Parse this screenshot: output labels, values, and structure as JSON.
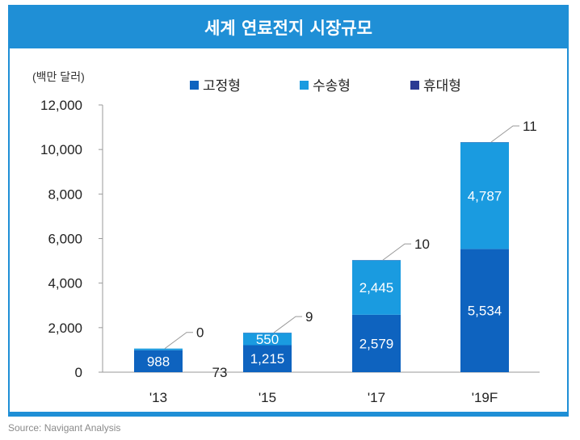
{
  "title": "세계 연료전지 시장규모",
  "source": "Source: Navigant Analysis",
  "chart_data": {
    "type": "bar",
    "stacked": true,
    "unit_label": "(백만 달러)",
    "categories": [
      "'13",
      "'15",
      "'17",
      "'19F"
    ],
    "series": [
      {
        "name": "고정형",
        "color": "#0e63bf",
        "values": [
          988,
          1215,
          2579,
          5534
        ]
      },
      {
        "name": "수송형",
        "color": "#1a9be0",
        "values": [
          73,
          550,
          2445,
          4787
        ]
      },
      {
        "name": "휴대형",
        "color": "#2b3a93",
        "values": [
          0,
          9,
          10,
          11
        ]
      }
    ],
    "data_labels": {
      "고정형": [
        "988",
        "1,215",
        "2,579",
        "5,534"
      ],
      "수송형": [
        "73",
        "550",
        "2,445",
        "4,787"
      ],
      "휴대형": [
        "0",
        "9",
        "10",
        "11"
      ]
    },
    "y_ticks": [
      "0",
      "2,000",
      "4,000",
      "6,000",
      "8,000",
      "10,000",
      "12,000"
    ],
    "ylim": [
      0,
      12000
    ],
    "grid": false,
    "legend_position": "top"
  }
}
